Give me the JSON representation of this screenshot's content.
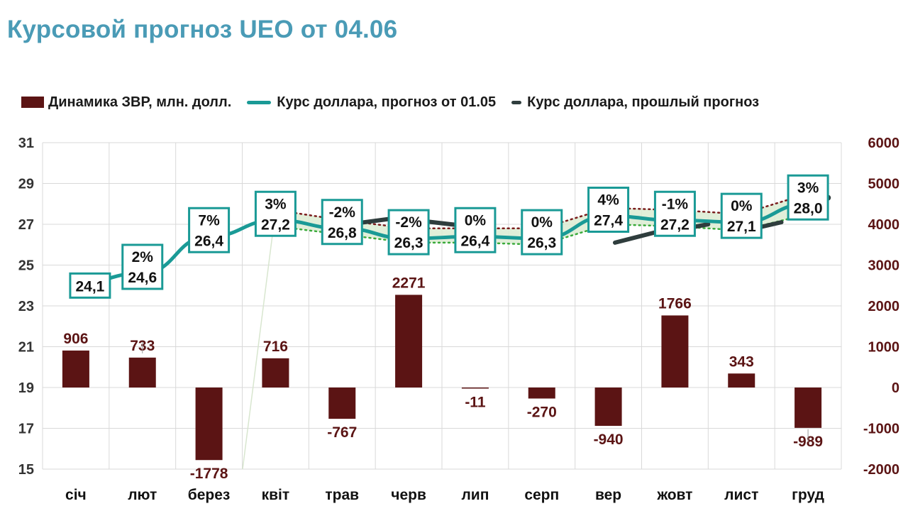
{
  "title": "Курсовой прогноз UEO от 04.06",
  "legend": {
    "bars": "Динамика ЗВР, млн. долл.",
    "line_current": "Курс доллара, прогноз от 01.05",
    "line_previous": "Курс доллара, прошлый прогноз"
  },
  "colors": {
    "bar": "#5b1414",
    "line_current": "#1a9a96",
    "line_previous": "#2f3d3d",
    "band_fill": "#dcecd2",
    "upper_dotted": "#7a1c1c",
    "lower_dotted": "#3aaa3a",
    "label_box_border": "#1a9a96",
    "title": "#4a9bb6",
    "bar_label": "#5b1414"
  },
  "chart_data": {
    "type": "bar+line",
    "categories": [
      "січ",
      "лют",
      "берез",
      "квіт",
      "трав",
      "черв",
      "лип",
      "серп",
      "вер",
      "жовт",
      "лист",
      "груд"
    ],
    "left_axis": {
      "ylim": [
        15,
        31
      ],
      "ticks": [
        "31",
        "29",
        "27",
        "25",
        "23",
        "21",
        "19",
        "17",
        "15"
      ]
    },
    "right_axis": {
      "ylim": [
        -2000,
        6000
      ],
      "ticks": [
        "6000",
        "5000",
        "4000",
        "3000",
        "2000",
        "1000",
        "0",
        "-1000",
        "-2000"
      ]
    },
    "bars": {
      "name": "Динамика ЗВР, млн. долл.",
      "values": [
        906,
        733,
        -1778,
        716,
        -767,
        2271,
        -11,
        -270,
        -940,
        1766,
        343,
        -989
      ],
      "labels": [
        "906",
        "733",
        "-1778",
        "716",
        "-767",
        "2271",
        "-11",
        "-270",
        "-940",
        "1766",
        "343",
        "-989"
      ]
    },
    "line_current": {
      "name": "Курс доллара, прогноз от 01.05",
      "values": [
        24.1,
        24.6,
        26.4,
        27.2,
        26.8,
        26.3,
        26.4,
        26.3,
        27.4,
        27.2,
        27.1,
        28.0
      ],
      "value_labels": [
        "24,1",
        "24,6",
        "26,4",
        "27,2",
        "26,8",
        "26,3",
        "26,4",
        "26,3",
        "27,4",
        "27,2",
        "27,1",
        "28,0"
      ],
      "change_labels": [
        "",
        "2%",
        "7%",
        "3%",
        "-2%",
        "-2%",
        "0%",
        "0%",
        "4%",
        "-1%",
        "0%",
        "3%"
      ]
    },
    "band": {
      "start_index": 3,
      "upper": [
        27.7,
        27.2,
        26.8,
        26.8,
        26.8,
        27.8,
        27.7,
        27.5,
        28.5
      ],
      "lower": [
        26.9,
        26.5,
        26.1,
        26.1,
        26.0,
        27.0,
        26.9,
        26.7,
        27.5
      ]
    },
    "line_previous": {
      "name": "Курс доллара, прошлый прогноз",
      "segments": [
        {
          "x": [
            4.6,
            5.3
          ],
          "y": [
            27.0,
            27.3
          ]
        },
        {
          "x": [
            5.6,
            6.4
          ],
          "y": [
            27.2,
            26.9
          ]
        },
        {
          "x": [
            7.4,
            7.6
          ],
          "y": [
            26.9,
            26.6
          ]
        },
        {
          "x": [
            8.6,
            9.2
          ],
          "y": [
            26.1,
            26.6
          ]
        },
        {
          "x": [
            9.5,
            10.0
          ],
          "y": [
            26.7,
            27.0
          ]
        },
        {
          "x": [
            10.7,
            11.1
          ],
          "y": [
            26.8,
            27.1
          ]
        }
      ],
      "end_point": {
        "x": 11.8,
        "y": 28.3
      }
    },
    "grid": true
  }
}
